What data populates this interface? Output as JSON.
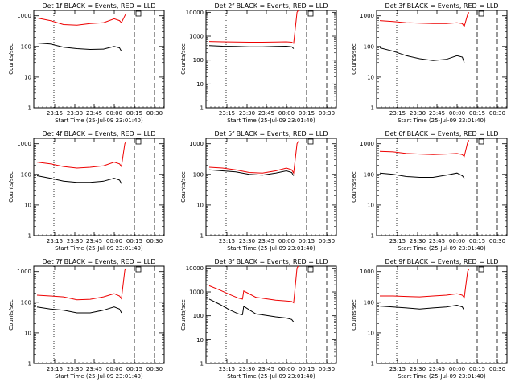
{
  "chart_data": [
    {
      "type": "line",
      "title": "Det 1f BLACK = Events, RED = LLD",
      "xlabel": "Start Time (25-Jul-09 23:01:40)",
      "ylabel": "Counts/sec",
      "x_ticks": [
        "23:15",
        "23:30",
        "23:45",
        "00:00",
        "00:15",
        "00:30"
      ],
      "y_ticks": [
        "1",
        "10",
        "100",
        "1000"
      ],
      "y_scale": "log",
      "xlim_minutes": [
        0,
        92
      ],
      "ylim": [
        1,
        1500
      ],
      "series": [
        {
          "color": "#000000",
          "x": [
            0,
            10,
            20,
            30,
            40,
            50,
            58,
            62,
            63.5
          ],
          "values": [
            130,
            120,
            95,
            85,
            80,
            82,
            100,
            90,
            70
          ]
        },
        {
          "color": "#ee0000",
          "x": [
            0,
            10,
            20,
            30,
            40,
            50,
            58,
            62,
            63.5,
            66,
            67
          ],
          "values": [
            850,
            700,
            520,
            500,
            560,
            600,
            800,
            700,
            600,
            1000,
            1200
          ]
        }
      ]
    },
    {
      "type": "line",
      "title": "Det 2f BLACK = Events, RED = LLD",
      "xlabel": "Start Time (25-Jul-09 23:01:40)",
      "ylabel": "Counts/sec",
      "x_ticks": [
        "23:15",
        "23:30",
        "23:45",
        "00:00",
        "00:15",
        "00:30"
      ],
      "y_ticks": [
        "1",
        "10",
        "100",
        "1000",
        "10000"
      ],
      "y_scale": "log",
      "xlim_minutes": [
        0,
        92
      ],
      "ylim": [
        1,
        12000
      ],
      "series": [
        {
          "color": "#000000",
          "x": [
            0,
            10,
            20,
            30,
            40,
            50,
            58,
            62,
            63.5
          ],
          "values": [
            400,
            380,
            370,
            360,
            360,
            370,
            380,
            360,
            300
          ]
        },
        {
          "color": "#ee0000",
          "x": [
            0,
            10,
            20,
            30,
            40,
            50,
            58,
            62,
            63.5,
            66,
            67
          ],
          "values": [
            600,
            580,
            570,
            560,
            560,
            570,
            580,
            560,
            500,
            10000,
            12000
          ]
        }
      ]
    },
    {
      "type": "line",
      "title": "Det 3f BLACK = Events, RED = LLD",
      "xlabel": "Start Time (25-Jul-09 23:01:40)",
      "ylabel": "Counts/sec",
      "x_ticks": [
        "23:15",
        "23:30",
        "23:45",
        "00:00",
        "00:15",
        "00:30"
      ],
      "y_ticks": [
        "1",
        "10",
        "100",
        "1000"
      ],
      "y_scale": "log",
      "xlim_minutes": [
        0,
        92
      ],
      "ylim": [
        1,
        1500
      ],
      "series": [
        {
          "color": "#000000",
          "x": [
            0,
            10,
            20,
            30,
            40,
            50,
            58,
            62,
            63.5
          ],
          "values": [
            90,
            70,
            50,
            40,
            35,
            38,
            50,
            45,
            30
          ]
        },
        {
          "color": "#ee0000",
          "x": [
            0,
            10,
            20,
            30,
            40,
            50,
            58,
            62,
            63.5,
            66,
            67
          ],
          "values": [
            700,
            650,
            600,
            580,
            560,
            560,
            600,
            560,
            450,
            1100,
            1300
          ]
        }
      ]
    },
    {
      "type": "line",
      "title": "Det 4f BLACK = Events, RED = LLD",
      "xlabel": "Start Time (25-Jul-09 23:01:40)",
      "ylabel": "Counts/sec",
      "x_ticks": [
        "23:15",
        "23:30",
        "23:45",
        "00:00",
        "00:15",
        "00:30"
      ],
      "y_ticks": [
        "1",
        "10",
        "100",
        "1000"
      ],
      "y_scale": "log",
      "xlim_minutes": [
        0,
        92
      ],
      "ylim": [
        1,
        1500
      ],
      "series": [
        {
          "color": "#000000",
          "x": [
            0,
            10,
            20,
            30,
            40,
            50,
            58,
            62,
            63.5
          ],
          "values": [
            90,
            75,
            60,
            55,
            55,
            60,
            75,
            65,
            50
          ]
        },
        {
          "color": "#ee0000",
          "x": [
            0,
            10,
            20,
            30,
            40,
            50,
            58,
            62,
            63.5,
            66,
            67
          ],
          "values": [
            250,
            220,
            180,
            160,
            170,
            190,
            250,
            220,
            180,
            1000,
            1200
          ]
        }
      ]
    },
    {
      "type": "line",
      "title": "Det 5f BLACK = Events, RED = LLD",
      "xlabel": "Start Time (25-Jul-09 23:01:40)",
      "ylabel": "Counts/sec",
      "x_ticks": [
        "23:15",
        "23:30",
        "23:45",
        "00:00",
        "00:15",
        "00:30"
      ],
      "y_ticks": [
        "1",
        "10",
        "100",
        "1000"
      ],
      "y_scale": "log",
      "xlim_minutes": [
        0,
        92
      ],
      "ylim": [
        1,
        1500
      ],
      "series": [
        {
          "color": "#000000",
          "x": [
            0,
            10,
            20,
            30,
            40,
            50,
            58,
            62,
            63.5
          ],
          "values": [
            140,
            130,
            120,
            100,
            95,
            110,
            130,
            115,
            90
          ]
        },
        {
          "color": "#ee0000",
          "x": [
            0,
            10,
            20,
            30,
            40,
            50,
            58,
            62,
            63.5,
            66,
            67
          ],
          "values": [
            170,
            160,
            140,
            115,
            110,
            130,
            160,
            140,
            110,
            1000,
            1200
          ]
        }
      ]
    },
    {
      "type": "line",
      "title": "Det 6f BLACK = Events, RED = LLD",
      "xlabel": "Start Time (25-Jul-09 23:01:40)",
      "ylabel": "Counts/sec",
      "x_ticks": [
        "23:15",
        "23:30",
        "23:45",
        "00:00",
        "00:15",
        "00:30"
      ],
      "y_ticks": [
        "1",
        "10",
        "100",
        "1000"
      ],
      "y_scale": "log",
      "xlim_minutes": [
        0,
        92
      ],
      "ylim": [
        1,
        1500
      ],
      "series": [
        {
          "color": "#000000",
          "x": [
            0,
            10,
            20,
            30,
            40,
            50,
            58,
            62,
            63.5
          ],
          "values": [
            110,
            100,
            85,
            80,
            80,
            95,
            110,
            90,
            75
          ]
        },
        {
          "color": "#ee0000",
          "x": [
            0,
            10,
            20,
            30,
            40,
            50,
            58,
            62,
            63.5,
            66,
            67
          ],
          "values": [
            560,
            540,
            480,
            460,
            440,
            460,
            480,
            440,
            380,
            1100,
            1300
          ]
        }
      ]
    },
    {
      "type": "line",
      "title": "Det 7f BLACK = Events, RED = LLD",
      "xlabel": "Start Time (25-Jul-09 23:01:40)",
      "ylabel": "Counts/sec",
      "x_ticks": [
        "23:15",
        "23:30",
        "23:45",
        "00:00",
        "00:15",
        "00:30"
      ],
      "y_ticks": [
        "1",
        "10",
        "100",
        "1000"
      ],
      "y_scale": "log",
      "xlim_minutes": [
        0,
        92
      ],
      "ylim": [
        1,
        1500
      ],
      "series": [
        {
          "color": "#000000",
          "x": [
            0,
            10,
            20,
            30,
            40,
            50,
            58,
            62,
            63.5
          ],
          "values": [
            70,
            60,
            55,
            45,
            45,
            55,
            70,
            60,
            45
          ]
        },
        {
          "color": "#ee0000",
          "x": [
            0,
            10,
            20,
            30,
            40,
            50,
            58,
            62,
            63.5,
            66,
            67
          ],
          "values": [
            170,
            160,
            150,
            120,
            125,
            150,
            190,
            160,
            130,
            1100,
            1300
          ]
        }
      ]
    },
    {
      "type": "line",
      "title": "Det 8f BLACK = Events, RED = LLD",
      "xlabel": "Start Time (25-Jul-09 23:01:40)",
      "ylabel": "Counts/sec",
      "x_ticks": [
        "23:15",
        "23:30",
        "23:45",
        "00:00",
        "00:15",
        "00:30"
      ],
      "y_ticks": [
        "1",
        "10",
        "100",
        "1000",
        "10000"
      ],
      "y_scale": "log",
      "xlim_minutes": [
        0,
        92
      ],
      "ylim": [
        1,
        12000
      ],
      "series": [
        {
          "color": "#000000",
          "x": [
            0,
            8,
            15,
            22,
            25,
            26,
            35,
            50,
            58,
            62,
            63.5
          ],
          "values": [
            500,
            300,
            180,
            120,
            110,
            250,
            120,
            90,
            80,
            70,
            55
          ]
        },
        {
          "color": "#ee0000",
          "x": [
            0,
            8,
            15,
            22,
            25,
            26,
            35,
            50,
            58,
            62,
            63.5,
            66,
            67
          ],
          "values": [
            1800,
            1200,
            800,
            550,
            500,
            1100,
            600,
            450,
            420,
            400,
            350,
            10000,
            12000
          ]
        }
      ]
    },
    {
      "type": "line",
      "title": "Det 9f BLACK = Events, RED = LLD",
      "xlabel": "Start Time (25-Jul-09 23:01:40)",
      "ylabel": "Counts/sec",
      "x_ticks": [
        "23:15",
        "23:30",
        "23:45",
        "00:00",
        "00:15",
        "00:30"
      ],
      "y_ticks": [
        "1",
        "10",
        "100",
        "1000"
      ],
      "y_scale": "log",
      "xlim_minutes": [
        0,
        92
      ],
      "ylim": [
        1,
        1500
      ],
      "series": [
        {
          "color": "#000000",
          "x": [
            0,
            10,
            20,
            30,
            40,
            50,
            58,
            62,
            63.5
          ],
          "values": [
            75,
            70,
            65,
            60,
            65,
            70,
            80,
            70,
            55
          ]
        },
        {
          "color": "#ee0000",
          "x": [
            0,
            10,
            20,
            30,
            40,
            50,
            58,
            62,
            63.5,
            66,
            67
          ],
          "values": [
            160,
            160,
            155,
            150,
            160,
            170,
            190,
            170,
            140,
            1000,
            1200
          ]
        }
      ]
    }
  ]
}
